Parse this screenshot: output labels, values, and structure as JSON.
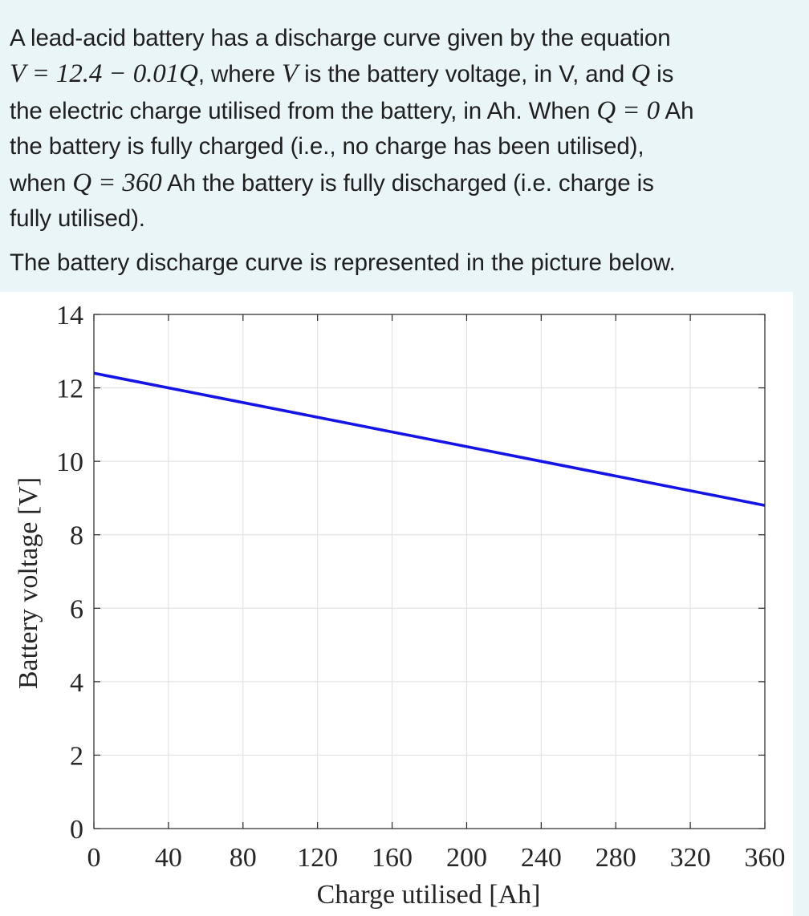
{
  "question": {
    "line1": "A lead-acid battery has a discharge curve given by the equation",
    "eq_main": "V = 12.4 − 0.01Q",
    "line2_mid1": ", where ",
    "var_V": "V",
    "line2_mid2": " is the battery voltage, in V, and ",
    "var_Q": "Q",
    "line2_end": " is",
    "line3_start": "the electric charge utilised from the battery, in Ah. When ",
    "eq_q0": "Q = 0",
    "line3_end": " Ah",
    "line4": "the battery is fully charged (i.e., no charge has been utilised),",
    "line5_start": "when ",
    "eq_q360": "Q = 360",
    "line5_end": " Ah the battery is fully discharged (i.e. charge is",
    "line6": "fully utilised).",
    "intro": "The battery discharge curve is represented in the picture below."
  },
  "chart_data": {
    "type": "line",
    "title": "",
    "xlabel": "Charge utilised [Ah]",
    "ylabel": "Battery voltage [V]",
    "xlim": [
      0,
      360
    ],
    "ylim": [
      0,
      14
    ],
    "xticks": [
      0,
      40,
      80,
      120,
      160,
      200,
      240,
      280,
      320,
      360
    ],
    "yticks": [
      0,
      2,
      4,
      6,
      8,
      10,
      12,
      14
    ],
    "grid": true,
    "series": [
      {
        "x": [
          0,
          360
        ],
        "y": [
          12.4,
          8.8
        ],
        "color": "#1414e6"
      }
    ]
  }
}
